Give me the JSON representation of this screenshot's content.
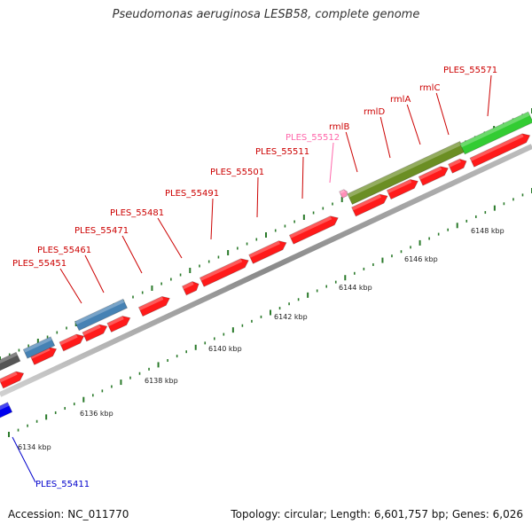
{
  "header": {
    "title": "Pseudomonas aeruginosa LESB58, complete genome"
  },
  "footer": {
    "accession": "Accession: NC_011770",
    "summary": "Topology: circular; Length: 6,601,757 bp; Genes: 6,026"
  },
  "scale": {
    "unit": "kbp",
    "ticks": [
      {
        "value": 6134,
        "label": "6134 kbp"
      },
      {
        "value": 6136,
        "label": "6136 kbp"
      },
      {
        "value": 6138,
        "label": "6138 kbp"
      },
      {
        "value": 6140,
        "label": "6140 kbp"
      },
      {
        "value": 6142,
        "label": "6142 kbp"
      },
      {
        "value": 6144,
        "label": "6144 kbp"
      },
      {
        "value": 6146,
        "label": "6146 kbp"
      },
      {
        "value": 6148,
        "label": "6148 kbp"
      }
    ]
  },
  "colors": {
    "cds_red": "#ff1a1a",
    "highlight_green": "#33cc33",
    "olive": "#6b8e23",
    "steel_blue": "#4682b4",
    "gray_gene": "#555555",
    "blue_gene": "#0000ee",
    "label_red": "#cc0000",
    "label_pink": "#ff66aa",
    "label_blue": "#0000cc",
    "backbone": "#888888",
    "tick_green": "#2a7a2a"
  },
  "labels": [
    {
      "text": "PLES_55451",
      "color": "#cc0000"
    },
    {
      "text": "PLES_55461",
      "color": "#cc0000"
    },
    {
      "text": "PLES_55471",
      "color": "#cc0000"
    },
    {
      "text": "PLES_55481",
      "color": "#cc0000"
    },
    {
      "text": "PLES_55491",
      "color": "#cc0000"
    },
    {
      "text": "PLES_55501",
      "color": "#cc0000"
    },
    {
      "text": "PLES_55511",
      "color": "#cc0000"
    },
    {
      "text": "PLES_55512",
      "color": "#ff66aa"
    },
    {
      "text": "rmlB",
      "color": "#cc0000"
    },
    {
      "text": "rmlD",
      "color": "#cc0000"
    },
    {
      "text": "rmlA",
      "color": "#cc0000"
    },
    {
      "text": "rmlC",
      "color": "#cc0000"
    },
    {
      "text": "PLES_55571",
      "color": "#cc0000"
    },
    {
      "text": "PLES_55411",
      "color": "#0000cc"
    }
  ]
}
